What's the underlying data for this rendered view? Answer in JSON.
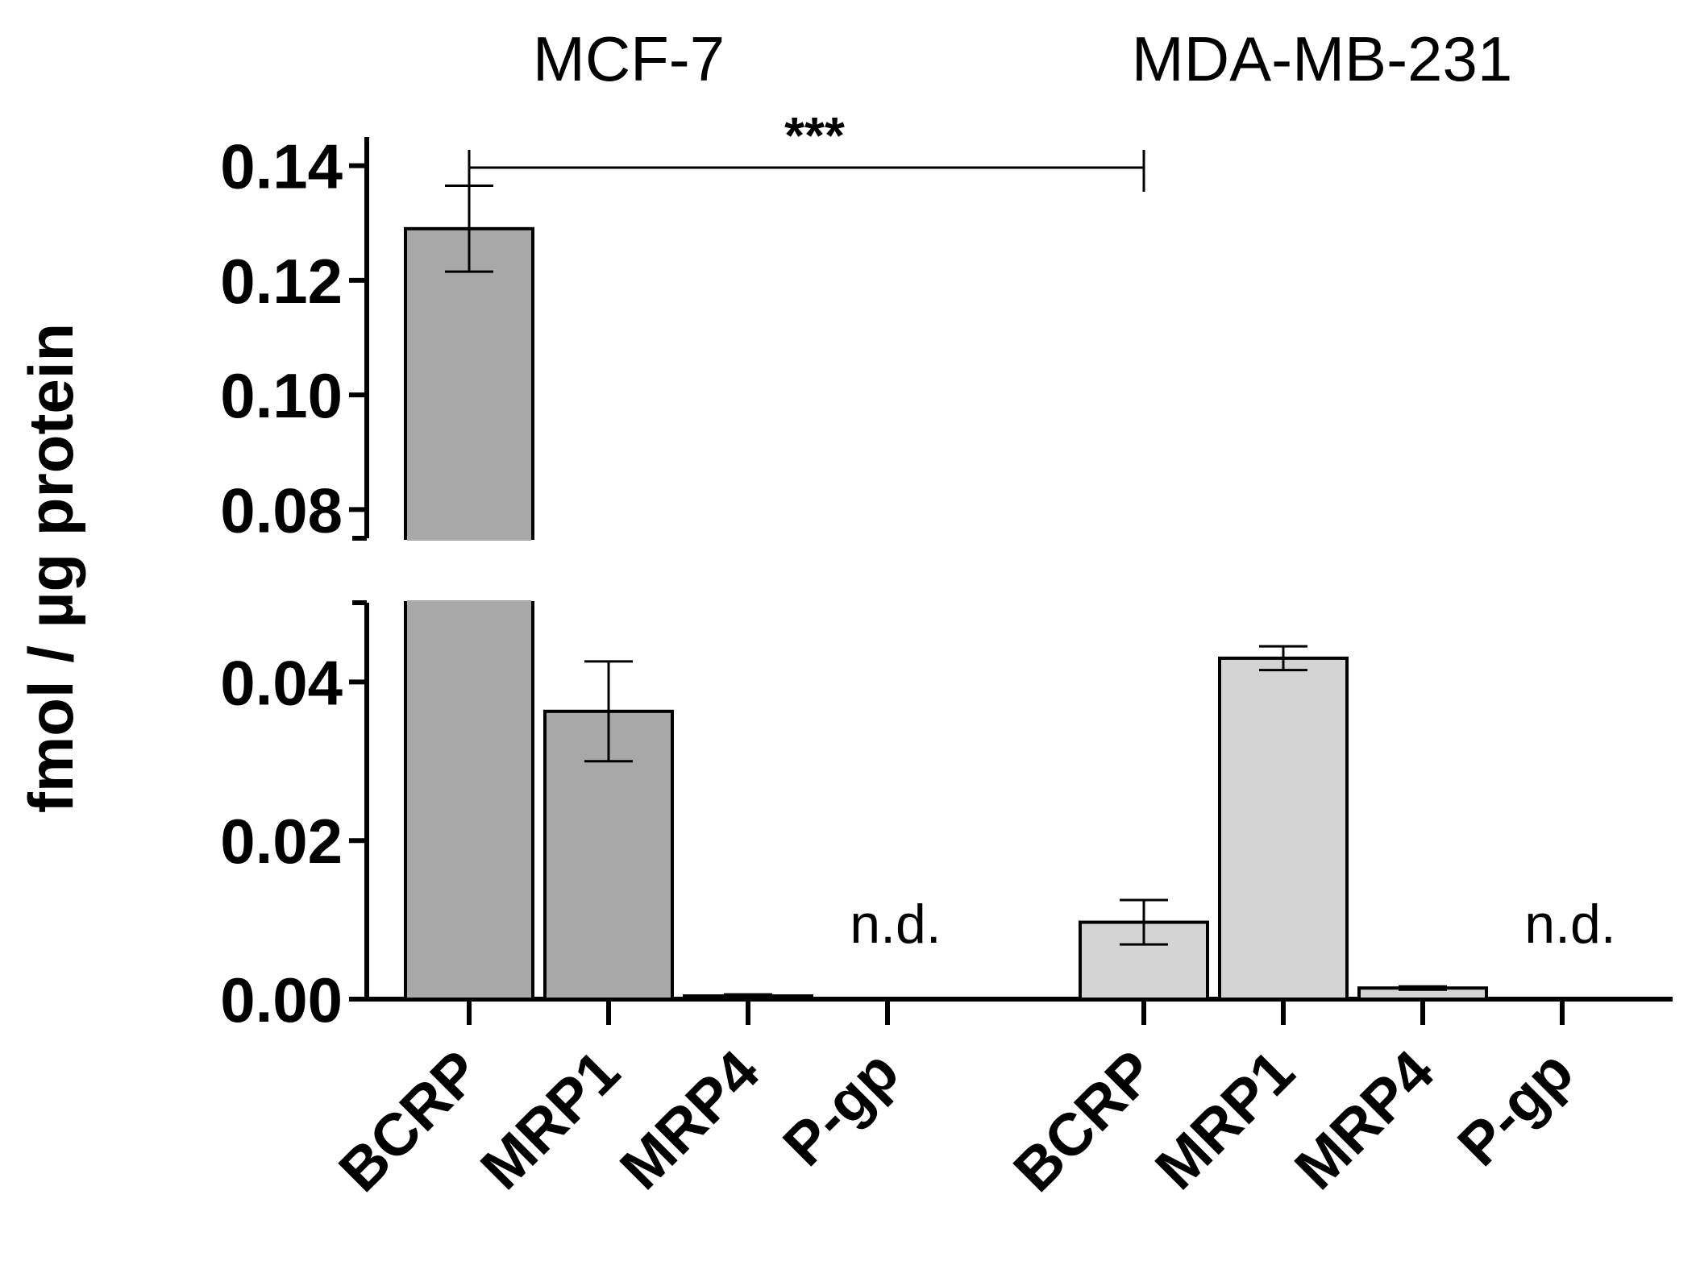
{
  "chart_data": {
    "type": "bar",
    "title": "",
    "xlabel": "",
    "ylabel": "fmol / µg protein",
    "axis_break": [
      0.05,
      0.075
    ],
    "ylim": [
      0,
      0.15
    ],
    "yticks": [
      {
        "value": 0.0,
        "label": "0.00"
      },
      {
        "value": 0.02,
        "label": "0.02"
      },
      {
        "value": 0.04,
        "label": "0.04"
      },
      {
        "value": 0.08,
        "label": "0.08"
      },
      {
        "value": 0.1,
        "label": "0.10"
      },
      {
        "value": 0.12,
        "label": "0.12"
      },
      {
        "value": 0.14,
        "label": "0.14"
      }
    ],
    "groups": [
      {
        "name": "MCF-7",
        "color": "#a8a8a8",
        "bars": [
          {
            "label": "BCRP",
            "value": 0.129,
            "error": 0.0075
          },
          {
            "label": "MRP1",
            "value": 0.0363,
            "error": 0.0063
          },
          {
            "label": "MRP4",
            "value": 0.0004,
            "error": 0.0002
          },
          {
            "label": "P-gp",
            "value": null,
            "note": "n.d."
          }
        ]
      },
      {
        "name": "MDA-MB-231",
        "color": "#d4d4d4",
        "bars": [
          {
            "label": "BCRP",
            "value": 0.0097,
            "error": 0.0028
          },
          {
            "label": "MRP1",
            "value": 0.043,
            "error": 0.0015
          },
          {
            "label": "MRP4",
            "value": 0.0014,
            "error": 0.0002
          },
          {
            "label": "P-gp",
            "value": null,
            "note": "n.d."
          }
        ]
      }
    ],
    "annotations": [
      {
        "type": "significance",
        "text": "***",
        "from": "MCF-7 BCRP",
        "to": "MDA-MB-231 BCRP"
      }
    ]
  }
}
